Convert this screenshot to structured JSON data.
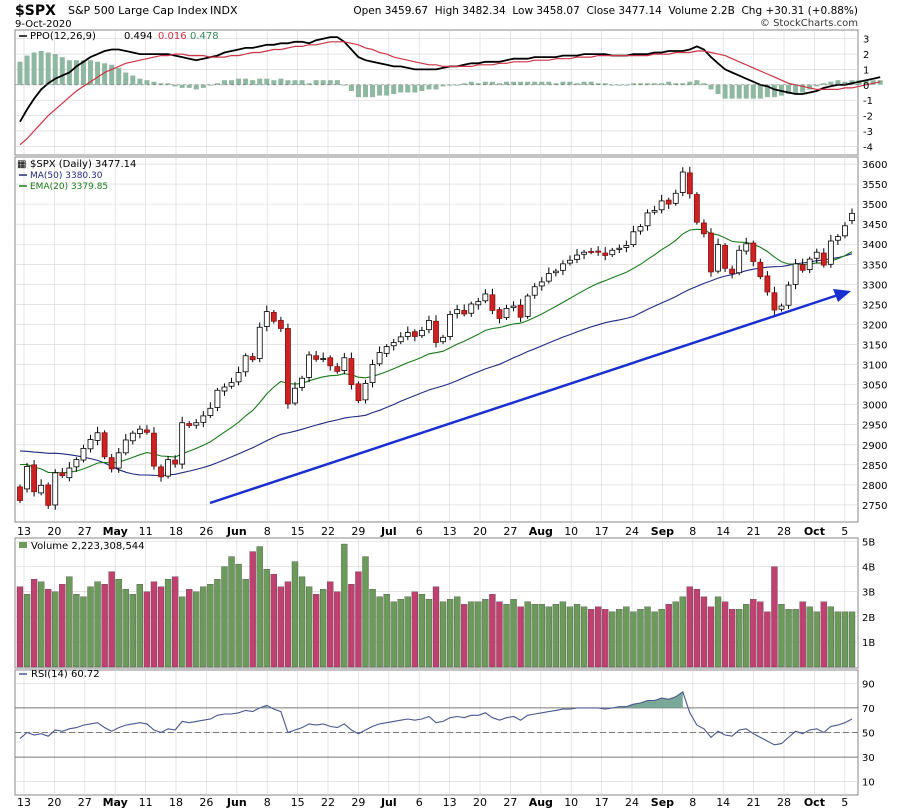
{
  "header": {
    "symbol": "$SPX",
    "name": "S&P 500 Large Cap Index",
    "exchange": "INDX",
    "date": "9-Oct-2020",
    "quote": "Open 3459.67  High 3482.34  Low 3458.07  Close 3477.14  Volume 2.2B  Chg +30.31 (+0.88%)",
    "watermark": "© StockCharts.com"
  },
  "chart_data": [
    {
      "type": "line",
      "panel": "PPO",
      "legend_name": "PPO(12,26,9)",
      "legend_values": [
        "0.494",
        "0.016",
        "0.478"
      ],
      "ylim": [
        -4.5,
        3.5
      ],
      "y_ticks": [
        "3",
        "2",
        "1",
        "0",
        "-1",
        "-2",
        "-3",
        "-4"
      ],
      "series": [
        {
          "name": "PPO",
          "color": "#000000",
          "values": [
            -2.4,
            -1.6,
            -0.9,
            -0.3,
            0.1,
            0.4,
            0.6,
            0.8,
            1.2,
            1.5,
            1.8,
            2.0,
            2.2,
            2.3,
            2.3,
            2.2,
            2.1,
            2.0,
            2.0,
            2.0,
            2.0,
            2.0,
            1.9,
            1.8,
            1.7,
            1.6,
            1.7,
            1.8,
            1.9,
            2.1,
            2.2,
            2.3,
            2.4,
            2.4,
            2.5,
            2.6,
            2.6,
            2.7,
            2.7,
            2.8,
            2.8,
            2.7,
            2.9,
            3.0,
            3.1,
            3.1,
            2.8,
            2.3,
            1.8,
            1.6,
            1.5,
            1.4,
            1.3,
            1.2,
            1.2,
            1.1,
            1.0,
            1.0,
            1.0,
            1.0,
            1.1,
            1.2,
            1.2,
            1.3,
            1.4,
            1.4,
            1.5,
            1.5,
            1.5,
            1.6,
            1.7,
            1.7,
            1.7,
            1.8,
            1.8,
            1.8,
            1.8,
            1.9,
            1.9,
            1.9,
            2.0,
            2.0,
            2.0,
            2.0,
            1.9,
            1.9,
            1.9,
            2.0,
            2.0,
            2.0,
            2.1,
            2.1,
            2.2,
            2.2,
            2.2,
            2.3,
            2.5,
            2.3,
            1.8,
            1.4,
            1.0,
            0.8,
            0.6,
            0.4,
            0.2,
            0.0,
            -0.1,
            -0.3,
            -0.4,
            -0.5,
            -0.6,
            -0.6,
            -0.5,
            -0.4,
            -0.2,
            -0.1,
            0.0,
            0.0,
            0.1,
            0.2,
            0.3,
            0.4,
            0.5
          ]
        },
        {
          "name": "Signal",
          "color": "#cc3344",
          "values": [
            -3.9,
            -3.5,
            -3.0,
            -2.5,
            -2.0,
            -1.6,
            -1.2,
            -0.8,
            -0.4,
            -0.1,
            0.2,
            0.5,
            0.8,
            1.0,
            1.2,
            1.4,
            1.5,
            1.6,
            1.7,
            1.8,
            1.9,
            1.9,
            2.0,
            2.0,
            1.9,
            1.9,
            1.9,
            1.8,
            1.8,
            1.8,
            1.9,
            1.9,
            2.0,
            2.1,
            2.1,
            2.2,
            2.3,
            2.3,
            2.4,
            2.5,
            2.5,
            2.6,
            2.6,
            2.7,
            2.8,
            2.8,
            2.8,
            2.7,
            2.6,
            2.4,
            2.3,
            2.1,
            2.0,
            1.8,
            1.7,
            1.6,
            1.5,
            1.4,
            1.3,
            1.3,
            1.2,
            1.2,
            1.2,
            1.2,
            1.2,
            1.3,
            1.3,
            1.3,
            1.4,
            1.4,
            1.5,
            1.5,
            1.5,
            1.6,
            1.6,
            1.6,
            1.7,
            1.7,
            1.7,
            1.8,
            1.8,
            1.8,
            1.9,
            1.9,
            1.9,
            1.9,
            1.9,
            1.9,
            1.9,
            1.9,
            2.0,
            2.0,
            2.0,
            2.1,
            2.1,
            2.1,
            2.2,
            2.2,
            2.1,
            2.0,
            1.9,
            1.7,
            1.5,
            1.3,
            1.1,
            0.9,
            0.7,
            0.5,
            0.3,
            0.1,
            0.0,
            -0.1,
            -0.2,
            -0.3,
            -0.3,
            -0.3,
            -0.3,
            -0.2,
            -0.2,
            -0.1,
            0.0,
            0.1,
            0.2
          ]
        }
      ],
      "histogram_color": "#8fb8a0"
    },
    {
      "type": "candlestick",
      "panel": "Price",
      "legend": [
        {
          "label": "$SPX (Daily) 3477.14",
          "color": "#000000"
        },
        {
          "label": "MA(50) 3380.30",
          "color": "#1f2a80"
        },
        {
          "label": "EMA(20) 3379.85",
          "color": "#1a7a1a"
        }
      ],
      "ylim": [
        2710,
        3615
      ],
      "y_ticks": [
        3600,
        3550,
        3500,
        3450,
        3400,
        3350,
        3300,
        3250,
        3200,
        3150,
        3100,
        3050,
        3000,
        2950,
        2900,
        2850,
        2800,
        2750
      ],
      "x_labels": [
        "13",
        "20",
        "27",
        "May",
        "11",
        "18",
        "26",
        "Jun",
        "8",
        "15",
        "22",
        "29",
        "Jul",
        "6",
        "13",
        "20",
        "27",
        "Aug",
        "10",
        "17",
        "24",
        "Sep",
        "8",
        "14",
        "21",
        "28",
        "Oct",
        "5"
      ],
      "close": [
        2761,
        2846,
        2783,
        2799,
        2749,
        2830,
        2823,
        2842,
        2863,
        2891,
        2913,
        2930,
        2870,
        2840,
        2880,
        2912,
        2929,
        2939,
        2931,
        2847,
        2820,
        2863,
        2852,
        2955,
        2948,
        2955,
        2972,
        2991,
        3036,
        3044,
        3055,
        3080,
        3122,
        3112,
        3193,
        3232,
        3208,
        3190,
        3002,
        3041,
        3066,
        3124,
        3113,
        3115,
        3097,
        3083,
        3117,
        3050,
        3010,
        3053,
        3100,
        3130,
        3145,
        3155,
        3169,
        3180,
        3170,
        3185,
        3210,
        3155,
        3168,
        3225,
        3237,
        3226,
        3251,
        3257,
        3276,
        3235,
        3215,
        3240,
        3246,
        3218,
        3271,
        3294,
        3306,
        3327,
        3333,
        3351,
        3360,
        3373,
        3380,
        3381,
        3380,
        3372,
        3385,
        3390,
        3397,
        3431,
        3444,
        3478,
        3484,
        3508,
        3500,
        3527,
        3580,
        3526,
        3455,
        3426,
        3331,
        3399,
        3340,
        3327,
        3385,
        3401,
        3357,
        3319,
        3281,
        3236,
        3246,
        3298,
        3351,
        3335,
        3363,
        3380,
        3348,
        3408,
        3419,
        3446,
        3477
      ],
      "open": [
        2795,
        2790,
        2850,
        2780,
        2800,
        2750,
        2830,
        2818,
        2845,
        2862,
        2890,
        2911,
        2930,
        2868,
        2842,
        2880,
        2910,
        2928,
        2937,
        2929,
        2845,
        2822,
        2862,
        2852,
        2953,
        2949,
        2956,
        2973,
        2993,
        3034,
        3046,
        3057,
        3082,
        3120,
        3115,
        3195,
        3230,
        3210,
        3190,
        3004,
        3043,
        3068,
        3122,
        3115,
        3117,
        3095,
        3085,
        3115,
        3052,
        3012,
        3055,
        3102,
        3128,
        3147,
        3157,
        3170,
        3182,
        3172,
        3187,
        3208,
        3157,
        3170,
        3227,
        3235,
        3228,
        3249,
        3259,
        3274,
        3237,
        3217,
        3242,
        3248,
        3220,
        3273,
        3296,
        3308,
        3329,
        3335,
        3353,
        3362,
        3375,
        3382,
        3383,
        3378,
        3374,
        3387,
        3392,
        3399,
        3433,
        3446,
        3480,
        3486,
        3510,
        3502,
        3529,
        3578,
        3524,
        3453,
        3428,
        3333,
        3397,
        3338,
        3329,
        3383,
        3403,
        3355,
        3321,
        3279,
        3238,
        3248,
        3300,
        3349,
        3337,
        3365,
        3378,
        3350,
        3410,
        3421,
        3459
      ]
    },
    {
      "type": "bar",
      "panel": "Volume",
      "legend_label": "Volume 2,223,308,544",
      "ylim": [
        0,
        5.1
      ],
      "y_ticks": [
        "5B",
        "4B",
        "3B",
        "2B",
        "1B"
      ],
      "values": [
        3.2,
        2.9,
        3.5,
        3.4,
        3.1,
        3.0,
        3.3,
        3.6,
        2.9,
        2.8,
        3.2,
        3.4,
        3.3,
        3.8,
        3.5,
        3.1,
        2.9,
        3.3,
        3.0,
        3.4,
        3.2,
        3.5,
        3.6,
        2.8,
        3.1,
        3.0,
        3.2,
        3.3,
        3.5,
        4.0,
        4.4,
        4.1,
        3.5,
        4.6,
        4.8,
        3.9,
        3.7,
        3.2,
        3.4,
        4.2,
        3.6,
        3.2,
        2.9,
        3.1,
        3.4,
        3.0,
        4.9,
        3.3,
        3.8,
        4.4,
        3.1,
        2.8,
        2.9,
        2.6,
        2.7,
        2.8,
        3.0,
        2.9,
        2.7,
        3.2,
        2.6,
        2.7,
        2.8,
        2.5,
        2.6,
        2.6,
        2.7,
        2.9,
        2.6,
        2.5,
        2.7,
        2.4,
        2.6,
        2.5,
        2.5,
        2.4,
        2.5,
        2.6,
        2.4,
        2.5,
        2.4,
        2.3,
        2.4,
        2.3,
        2.2,
        2.3,
        2.4,
        2.2,
        2.3,
        2.4,
        2.2,
        2.3,
        2.5,
        2.6,
        2.8,
        3.2,
        3.1,
        2.8,
        2.4,
        2.8,
        2.6,
        2.3,
        2.3,
        2.5,
        2.7,
        2.6,
        2.2,
        4.0,
        2.5,
        2.3,
        2.3,
        2.6,
        2.4,
        2.2,
        2.6,
        2.4,
        2.2,
        2.2,
        2.2
      ]
    },
    {
      "type": "line",
      "panel": "RSI",
      "legend_label": "RSI(14) 60.72",
      "ylim": [
        0,
        100
      ],
      "y_ticks": [
        90,
        70,
        50,
        30,
        10
      ],
      "bands": [
        70,
        50,
        30
      ],
      "series": [
        {
          "name": "RSI",
          "color": "#4a5890",
          "values": [
            45,
            50,
            48,
            49,
            47,
            52,
            51,
            53,
            54,
            56,
            57,
            58,
            54,
            51,
            54,
            56,
            57,
            58,
            57,
            52,
            50,
            53,
            52,
            59,
            58,
            59,
            60,
            61,
            64,
            65,
            65,
            66,
            68,
            67,
            70,
            72,
            69,
            67,
            50,
            52,
            54,
            57,
            56,
            57,
            55,
            54,
            57,
            52,
            49,
            52,
            55,
            57,
            58,
            59,
            60,
            61,
            60,
            61,
            63,
            58,
            59,
            62,
            63,
            62,
            64,
            64,
            66,
            62,
            60,
            62,
            63,
            60,
            64,
            65,
            66,
            67,
            68,
            69,
            69,
            70,
            70,
            70,
            70,
            69,
            70,
            71,
            71,
            73,
            74,
            76,
            76,
            78,
            77,
            79,
            83,
            66,
            56,
            53,
            46,
            51,
            48,
            47,
            52,
            53,
            49,
            46,
            43,
            40,
            41,
            46,
            51,
            49,
            52,
            53,
            50,
            55,
            56,
            58,
            61
          ]
        }
      ]
    }
  ],
  "colors": {
    "up_fill": "#ffffff",
    "down_fill": "#cc2222",
    "vol_up": "#6c9a5a",
    "vol_down": "#c04070",
    "trend_arrow": "#1a2fcf",
    "grid": "#d4d4d4"
  }
}
